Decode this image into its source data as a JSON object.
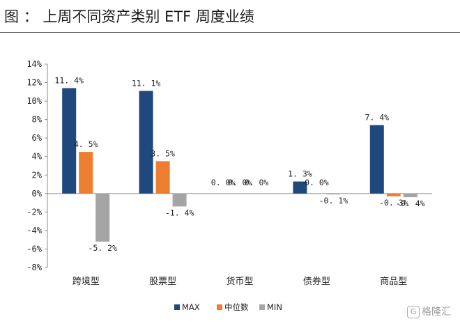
{
  "header": {
    "label": "图",
    "sep": "：",
    "title": "上周不同资产类别 ETF 周度业绩"
  },
  "watermark": {
    "icon": "G",
    "text": "格隆汇"
  },
  "chart_data": {
    "type": "bar",
    "title": "上周不同资产类别 ETF 周度业绩",
    "categories": [
      "跨境型",
      "股票型",
      "货币型",
      "债券型",
      "商品型"
    ],
    "series": [
      {
        "name": "MAX",
        "color": "#1f497d",
        "values": [
          11.4,
          11.1,
          0.0,
          1.3,
          7.4
        ],
        "labels": [
          "11. 4%",
          "11. 1%",
          "0. 0%",
          "1. 3%",
          "7. 4%"
        ]
      },
      {
        "name": "中位数",
        "color": "#ed7d31",
        "values": [
          4.5,
          3.5,
          0.0,
          0.0,
          -0.3
        ],
        "labels": [
          "4. 5%",
          "3. 5%",
          "0. 0%",
          "0. 0%",
          "-0. 3%"
        ]
      },
      {
        "name": "MIN",
        "color": "#a5a5a5",
        "values": [
          -5.2,
          -1.4,
          0.0,
          -0.1,
          -0.4
        ],
        "labels": [
          "-5. 2%",
          "-1. 4%",
          "0. 0%",
          "-0. 1%",
          "-0. 4%"
        ]
      }
    ],
    "ylim": [
      -8,
      14
    ],
    "yticks": [
      14,
      12,
      10,
      8,
      6,
      4,
      2,
      0,
      -2,
      -4,
      -6,
      -8
    ],
    "ytick_labels": [
      "14%",
      "12%",
      "10%",
      "8%",
      "6%",
      "4%",
      "2%",
      "0%",
      "-2%",
      "-4%",
      "-6%",
      "-8%"
    ],
    "xlabel": "",
    "ylabel": "",
    "grid": false,
    "legend": "bottom-center"
  }
}
